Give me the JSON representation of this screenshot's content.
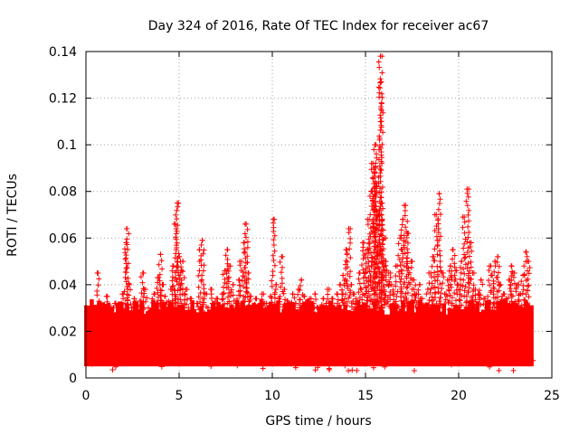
{
  "chart_data": {
    "type": "scatter",
    "title": "Day 324 of 2016, Rate Of TEC Index for receiver ac67",
    "xlabel": "GPS time / hours",
    "ylabel": "ROTI / TECUs",
    "xlim": [
      0,
      25
    ],
    "ylim": [
      0,
      0.14
    ],
    "xticks": [
      0,
      5,
      10,
      15,
      20,
      25
    ],
    "xtick_labels": [
      "0",
      "5",
      "10",
      "15",
      "20",
      "25"
    ],
    "yticks": [
      0,
      0.02,
      0.04,
      0.06,
      0.08,
      0.1,
      0.12,
      0.14
    ],
    "ytick_labels": [
      "0",
      "0.02",
      "0.04",
      "0.06",
      "0.08",
      "0.1",
      "0.12",
      "0.14"
    ],
    "grid": true,
    "marker": "+",
    "color": "#ff0000",
    "series": [
      {
        "name": "ROTI",
        "x": [
          0.05,
          0.2,
          0.35,
          0.5,
          0.65,
          0.8,
          0.95,
          1.1,
          1.25,
          1.4,
          1.55,
          1.7,
          1.85,
          2.0,
          2.15,
          2.2,
          2.3,
          2.45,
          2.6,
          2.75,
          2.9,
          3.05,
          3.2,
          3.35,
          3.5,
          3.65,
          3.8,
          3.9,
          4.0,
          4.1,
          4.25,
          4.4,
          4.55,
          4.7,
          4.8,
          4.9,
          5.0,
          5.1,
          5.2,
          5.35,
          5.5,
          5.65,
          5.8,
          5.95,
          6.1,
          6.25,
          6.4,
          6.55,
          6.7,
          6.85,
          7.0,
          7.15,
          7.3,
          7.45,
          7.6,
          7.75,
          7.9,
          8.05,
          8.2,
          8.35,
          8.5,
          8.6,
          8.7,
          8.85,
          9.0,
          9.15,
          9.3,
          9.45,
          9.6,
          9.75,
          9.9,
          10.05,
          10.2,
          10.35,
          10.5,
          10.65,
          10.8,
          10.95,
          11.1,
          11.25,
          11.4,
          11.55,
          11.7,
          11.85,
          12.0,
          12.15,
          12.3,
          12.45,
          12.6,
          12.75,
          12.9,
          13.05,
          13.2,
          13.35,
          13.5,
          13.65,
          13.8,
          13.95,
          14.1,
          14.25,
          14.4,
          14.55,
          14.7,
          14.85,
          15.0,
          15.1,
          15.2,
          15.3,
          15.4,
          15.5,
          15.55,
          15.6,
          15.7,
          15.8,
          15.85,
          15.9,
          16.0,
          16.1,
          16.25,
          16.4,
          16.55,
          16.7,
          16.85,
          17.0,
          17.15,
          17.3,
          17.45,
          17.6,
          17.75,
          17.9,
          18.05,
          18.2,
          18.35,
          18.5,
          18.65,
          18.8,
          18.95,
          19.1,
          19.25,
          19.4,
          19.55,
          19.7,
          19.85,
          20.0,
          20.15,
          20.3,
          20.45,
          20.6,
          20.75,
          20.9,
          21.05,
          21.2,
          21.35,
          21.5,
          21.65,
          21.8,
          21.95,
          22.1,
          22.25,
          22.4,
          22.55,
          22.7,
          22.85,
          23.0,
          23.15,
          23.3,
          23.45,
          23.6,
          23.75
        ],
        "y": [
          0.012,
          0.02,
          0.03,
          0.025,
          0.045,
          0.028,
          0.022,
          0.035,
          0.03,
          0.026,
          0.032,
          0.028,
          0.024,
          0.036,
          0.058,
          0.064,
          0.04,
          0.03,
          0.034,
          0.027,
          0.033,
          0.045,
          0.038,
          0.03,
          0.028,
          0.036,
          0.032,
          0.043,
          0.053,
          0.04,
          0.035,
          0.03,
          0.038,
          0.048,
          0.066,
          0.075,
          0.052,
          0.046,
          0.05,
          0.038,
          0.03,
          0.034,
          0.028,
          0.032,
          0.055,
          0.059,
          0.036,
          0.03,
          0.038,
          0.032,
          0.034,
          0.028,
          0.036,
          0.046,
          0.055,
          0.048,
          0.04,
          0.032,
          0.042,
          0.05,
          0.058,
          0.066,
          0.045,
          0.035,
          0.03,
          0.034,
          0.028,
          0.036,
          0.032,
          0.03,
          0.035,
          0.068,
          0.04,
          0.034,
          0.052,
          0.038,
          0.033,
          0.03,
          0.036,
          0.032,
          0.038,
          0.042,
          0.035,
          0.03,
          0.034,
          0.032,
          0.036,
          0.03,
          0.028,
          0.034,
          0.032,
          0.038,
          0.034,
          0.03,
          0.036,
          0.04,
          0.044,
          0.055,
          0.064,
          0.04,
          0.036,
          0.032,
          0.045,
          0.058,
          0.045,
          0.055,
          0.068,
          0.08,
          0.092,
          0.1,
          0.09,
          0.082,
          0.07,
          0.138,
          0.127,
          0.075,
          0.06,
          0.05,
          0.045,
          0.04,
          0.036,
          0.048,
          0.06,
          0.068,
          0.074,
          0.062,
          0.05,
          0.042,
          0.036,
          0.04,
          0.034,
          0.03,
          0.038,
          0.045,
          0.052,
          0.07,
          0.079,
          0.045,
          0.036,
          0.042,
          0.048,
          0.055,
          0.046,
          0.04,
          0.05,
          0.069,
          0.081,
          0.058,
          0.045,
          0.038,
          0.036,
          0.042,
          0.034,
          0.03,
          0.048,
          0.044,
          0.05,
          0.052,
          0.04,
          0.036,
          0.034,
          0.042,
          0.048,
          0.045,
          0.04,
          0.036,
          0.044,
          0.054,
          0.05
        ]
      }
    ],
    "dense_band": {
      "min": 0.005,
      "max": 0.03,
      "x_start": 0,
      "x_end": 24
    }
  }
}
